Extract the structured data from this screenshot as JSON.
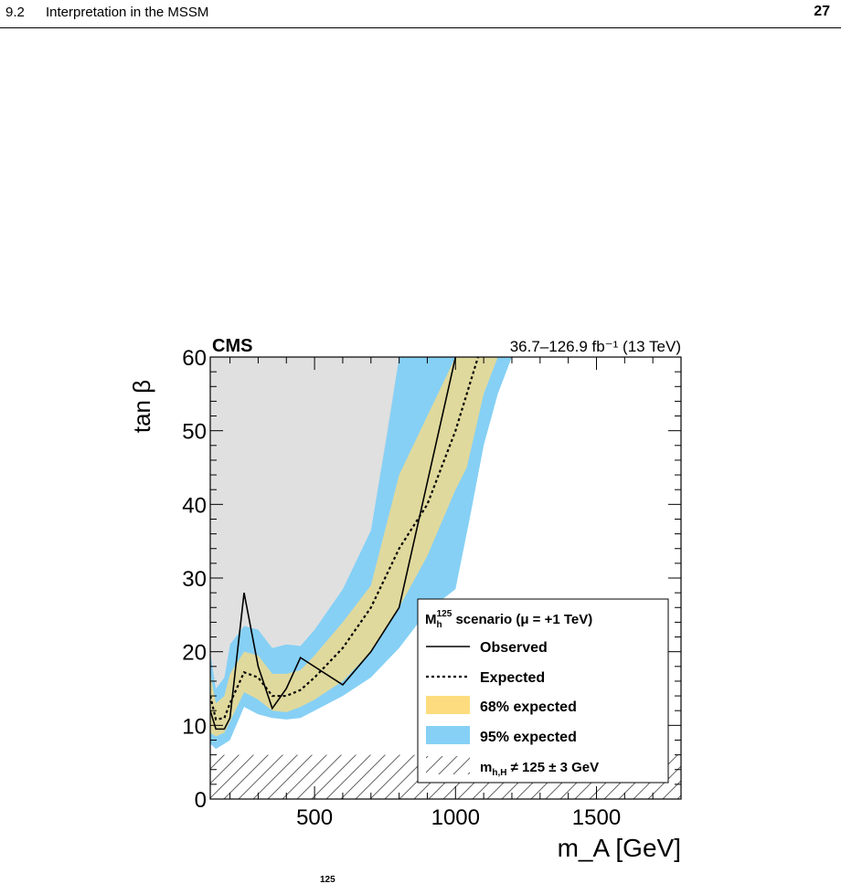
{
  "header": {
    "section_number": "9.2",
    "section_title": "Interpretation in the MSSM",
    "page_number": "27"
  },
  "caption_fragment": "125",
  "chart_data": {
    "type": "area",
    "title": "CMS",
    "subtitle": "36.7–126.9 fb⁻¹ (13 TeV)",
    "xlabel": "m_A [GeV]",
    "ylabel": "tan β",
    "xlim": [
      130,
      1800
    ],
    "ylim": [
      0,
      60
    ],
    "x_ticks": [
      500,
      1000,
      1500
    ],
    "y_ticks": [
      0,
      10,
      20,
      30,
      40,
      50,
      60
    ],
    "legend_position": "bottom-right",
    "legend": {
      "header_main": "M",
      "header_sub": "h",
      "header_sup": "125",
      "header_rest": " scenario (μ =  +1 TeV)",
      "items": [
        "Observed",
        "Expected",
        "68% expected",
        "95% expected"
      ],
      "excluded_main": "m",
      "excluded_sub": "h,H",
      "excluded_rest": " ≠ 125 ± 3 GeV"
    },
    "colors": {
      "observed_excluded": "#d6d6d6",
      "band_95": "#86d0f5",
      "band_68": "#fddc7f",
      "excluded_region_hatch": "#666666"
    },
    "excluded_region": {
      "tanb_max": 6
    },
    "series": [
      {
        "name": "Observed",
        "x": [
          130,
          150,
          180,
          200,
          250,
          300,
          350,
          400,
          450,
          600,
          700,
          800,
          900,
          1000
        ],
        "y": [
          12,
          9.5,
          9.5,
          11,
          28,
          18,
          12.3,
          15,
          19.2,
          15.5,
          20,
          26,
          43,
          60
        ]
      },
      {
        "name": "Expected",
        "x": [
          130,
          150,
          180,
          200,
          250,
          300,
          350,
          400,
          450,
          500,
          600,
          700,
          800,
          900,
          1000,
          1080
        ],
        "y": [
          14,
          10.8,
          11,
          13,
          17.2,
          16.5,
          14,
          14,
          14.8,
          16.5,
          20.5,
          26,
          34,
          40,
          50,
          60
        ]
      },
      {
        "name": "68% expected",
        "x": [
          130,
          150,
          180,
          200,
          250,
          300,
          350,
          400,
          450,
          500,
          600,
          700,
          800,
          900,
          1000,
          1040,
          1100,
          1150
        ],
        "low": [
          9,
          8.5,
          9,
          10.5,
          14.5,
          13.5,
          12,
          11.8,
          12.5,
          13.5,
          16,
          20,
          26,
          33,
          42,
          45,
          55,
          60
        ],
        "high": [
          17,
          13,
          14,
          17,
          20,
          19.5,
          17,
          17,
          17.5,
          19.5,
          24,
          29,
          44,
          52,
          60,
          60,
          60,
          60
        ]
      },
      {
        "name": "95% expected",
        "x": [
          130,
          150,
          180,
          200,
          250,
          300,
          350,
          400,
          450,
          500,
          600,
          700,
          800,
          850,
          900,
          1000,
          1050,
          1100,
          1150,
          1200
        ],
        "low": [
          7.5,
          6.8,
          7.5,
          8,
          12.5,
          11.5,
          11,
          10.8,
          11,
          12,
          14,
          16.5,
          20.5,
          23,
          25.5,
          28.5,
          38,
          48,
          55,
          60
        ],
        "high": [
          20,
          15,
          16.5,
          21,
          23.5,
          23,
          20.5,
          21,
          20.8,
          23,
          28.5,
          36.5,
          60,
          60,
          60,
          60,
          60,
          60,
          60,
          60
        ]
      },
      {
        "name": "Observed excluded region",
        "x": [
          130,
          150,
          180,
          200,
          250,
          300,
          350,
          400,
          450,
          500,
          600,
          700,
          760,
          780,
          800
        ],
        "y": [
          20,
          15,
          16.5,
          21,
          23.5,
          23,
          20.5,
          21,
          20.8,
          23,
          28.5,
          36.5,
          50,
          55,
          60
        ]
      }
    ]
  }
}
